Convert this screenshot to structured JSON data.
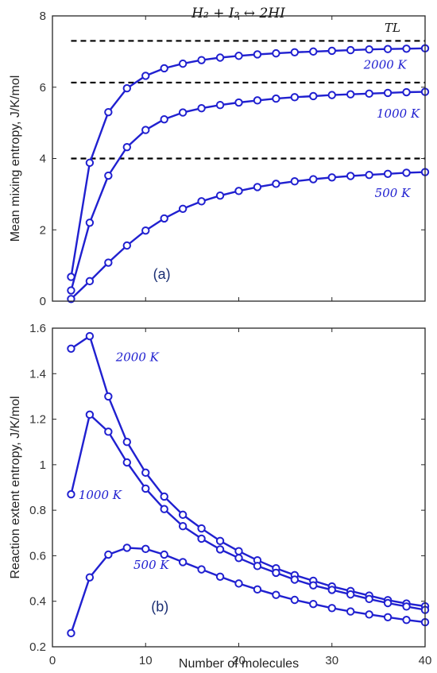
{
  "colors": {
    "series": "#2020d0",
    "reference": "#000000",
    "axis": "#262626"
  },
  "chart_data": [
    {
      "type": "line",
      "title": "H₂ + I₂ ↔ 2HI",
      "panel_label": "(a)",
      "xlabel": "",
      "ylabel": "Mean mixing entropy, J/K/mol",
      "xlim": [
        0,
        40
      ],
      "ylim": [
        0,
        8
      ],
      "xticks": [
        0,
        10,
        20,
        30,
        40
      ],
      "yticks": [
        0,
        2,
        4,
        6,
        8
      ],
      "grid": false,
      "x": [
        2,
        4,
        6,
        8,
        10,
        12,
        14,
        16,
        18,
        20,
        22,
        24,
        26,
        28,
        30,
        32,
        34,
        36,
        38,
        40
      ],
      "series": [
        {
          "label": "2000 K",
          "values": [
            0.68,
            3.88,
            5.3,
            5.97,
            6.32,
            6.53,
            6.66,
            6.76,
            6.83,
            6.88,
            6.92,
            6.95,
            6.98,
            7.0,
            7.02,
            7.04,
            7.06,
            7.07,
            7.08,
            7.09
          ]
        },
        {
          "label": "1000 K",
          "values": [
            0.3,
            2.2,
            3.52,
            4.32,
            4.8,
            5.1,
            5.29,
            5.41,
            5.5,
            5.57,
            5.63,
            5.68,
            5.72,
            5.75,
            5.78,
            5.8,
            5.82,
            5.84,
            5.86,
            5.87
          ]
        },
        {
          "label": "500 K",
          "values": [
            0.06,
            0.56,
            1.08,
            1.56,
            1.98,
            2.32,
            2.59,
            2.8,
            2.96,
            3.09,
            3.2,
            3.29,
            3.36,
            3.42,
            3.47,
            3.51,
            3.54,
            3.57,
            3.6,
            3.62
          ]
        }
      ],
      "reference_lines": [
        {
          "y": 7.3,
          "label": "TL"
        },
        {
          "y": 6.13,
          "label": ""
        },
        {
          "y": 4.0,
          "label": ""
        }
      ]
    },
    {
      "type": "line",
      "title": "",
      "panel_label": "(b)",
      "xlabel": "Number of molecules",
      "ylabel": "Reaction extent entropy, J/K/mol",
      "xlim": [
        0,
        40
      ],
      "ylim": [
        0.2,
        1.6
      ],
      "xticks": [
        0,
        10,
        20,
        30,
        40
      ],
      "yticks": [
        0.2,
        0.4,
        0.6,
        0.8,
        1,
        1.2,
        1.4,
        1.6
      ],
      "grid": false,
      "x": [
        2,
        4,
        6,
        8,
        10,
        12,
        14,
        16,
        18,
        20,
        22,
        24,
        26,
        28,
        30,
        32,
        34,
        36,
        38,
        40
      ],
      "series": [
        {
          "label": "2000 K",
          "values": [
            1.51,
            1.565,
            1.3,
            1.1,
            0.965,
            0.86,
            0.78,
            0.72,
            0.665,
            0.62,
            0.58,
            0.545,
            0.515,
            0.49,
            0.465,
            0.445,
            0.425,
            0.405,
            0.39,
            0.378
          ]
        },
        {
          "label": "1000 K",
          "values": [
            0.87,
            1.22,
            1.145,
            1.01,
            0.895,
            0.805,
            0.73,
            0.675,
            0.628,
            0.59,
            0.555,
            0.525,
            0.495,
            0.47,
            0.45,
            0.43,
            0.41,
            0.392,
            0.377,
            0.362
          ]
        },
        {
          "label": "500 K",
          "values": [
            0.26,
            0.505,
            0.605,
            0.635,
            0.63,
            0.605,
            0.572,
            0.54,
            0.508,
            0.478,
            0.452,
            0.428,
            0.406,
            0.388,
            0.37,
            0.355,
            0.342,
            0.33,
            0.318,
            0.308
          ]
        }
      ]
    }
  ]
}
